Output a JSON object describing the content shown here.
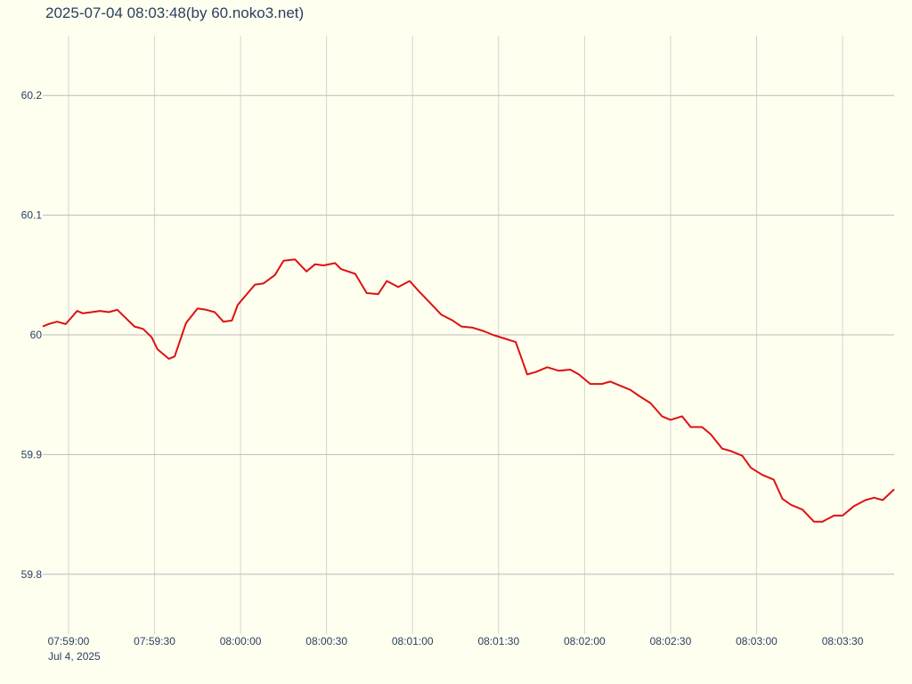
{
  "chart_data": {
    "type": "line",
    "title": "2025-07-04 08:03:48(by 60.noko3.net)",
    "xlabel": "",
    "ylabel": "",
    "x_date_label": "Jul 4, 2025",
    "x_tick_labels": [
      "07:59:00",
      "07:59:30",
      "08:00:00",
      "08:00:30",
      "08:01:00",
      "08:01:30",
      "08:02:00",
      "08:02:30",
      "08:03:00",
      "08:03:30"
    ],
    "x_range": [
      "07:58:51",
      "08:03:48"
    ],
    "y_ticks": [
      59.8,
      59.9,
      60.0,
      60.1,
      60.2
    ],
    "y_tick_labels": [
      "59.8",
      "59.9",
      "60",
      "60.1",
      "60.2"
    ],
    "ylim": [
      59.75,
      60.25
    ],
    "grid": true,
    "colors": {
      "line": "#dd1111",
      "grid": "#bbbbbb",
      "background": "#fffff0",
      "text": "#2a3f5f"
    },
    "series": [
      {
        "x": [
          "07:58:51",
          "07:58:53",
          "07:58:56",
          "07:58:59",
          "07:59:03",
          "07:59:05",
          "07:59:08",
          "07:59:11",
          "07:59:14",
          "07:59:17",
          "07:59:20",
          "07:59:23",
          "07:59:26",
          "07:59:29",
          "07:59:31",
          "07:59:35",
          "07:59:37",
          "07:59:41",
          "07:59:45",
          "07:59:48",
          "07:59:51",
          "07:59:54",
          "07:59:57",
          "07:59:59",
          "08:00:05",
          "08:00:08",
          "08:00:12",
          "08:00:15",
          "08:00:19",
          "08:00:23",
          "08:00:26",
          "08:00:29",
          "08:00:33",
          "08:00:35",
          "08:00:40",
          "08:00:44",
          "08:00:48",
          "08:00:51",
          "08:00:55",
          "08:00:59",
          "08:01:02",
          "08:01:06",
          "08:01:10",
          "08:01:14",
          "08:01:17",
          "08:01:21",
          "08:01:25",
          "08:01:28",
          "08:01:32",
          "08:01:36",
          "08:01:40",
          "08:01:43",
          "08:01:47",
          "08:01:51",
          "08:01:55",
          "08:01:58",
          "08:02:02",
          "08:02:06",
          "08:02:09",
          "08:02:13",
          "08:02:16",
          "08:02:19",
          "08:02:23",
          "08:02:27",
          "08:02:30",
          "08:02:34",
          "08:02:37",
          "08:02:41",
          "08:02:44",
          "08:02:48",
          "08:02:51",
          "08:02:55",
          "08:02:58",
          "08:03:02",
          "08:03:06",
          "08:03:09",
          "08:03:12",
          "08:03:16",
          "08:03:20",
          "08:03:23",
          "08:03:27",
          "08:03:30",
          "08:03:34",
          "08:03:38",
          "08:03:41",
          "08:03:44",
          "08:03:48"
        ],
        "y": [
          60.007,
          60.009,
          60.011,
          60.009,
          60.02,
          60.018,
          60.019,
          60.02,
          60.019,
          60.021,
          60.014,
          60.007,
          60.005,
          59.998,
          59.988,
          59.98,
          59.982,
          60.01,
          60.022,
          60.021,
          60.019,
          60.011,
          60.012,
          60.025,
          60.042,
          60.043,
          60.05,
          60.062,
          60.063,
          60.053,
          60.059,
          60.058,
          60.06,
          60.055,
          60.051,
          60.035,
          60.034,
          60.045,
          60.04,
          60.045,
          60.037,
          60.027,
          60.017,
          60.012,
          60.007,
          60.006,
          60.003,
          60.0,
          59.997,
          59.994,
          59.967,
          59.969,
          59.973,
          59.97,
          59.971,
          59.967,
          59.959,
          59.959,
          59.961,
          59.957,
          59.954,
          59.949,
          59.943,
          59.932,
          59.929,
          59.932,
          59.923,
          59.923,
          59.917,
          59.905,
          59.903,
          59.899,
          59.889,
          59.883,
          59.879,
          59.863,
          59.858,
          59.854,
          59.844,
          59.844,
          59.849,
          59.849,
          59.857,
          59.862,
          59.864,
          59.862,
          59.871
        ]
      }
    ]
  }
}
